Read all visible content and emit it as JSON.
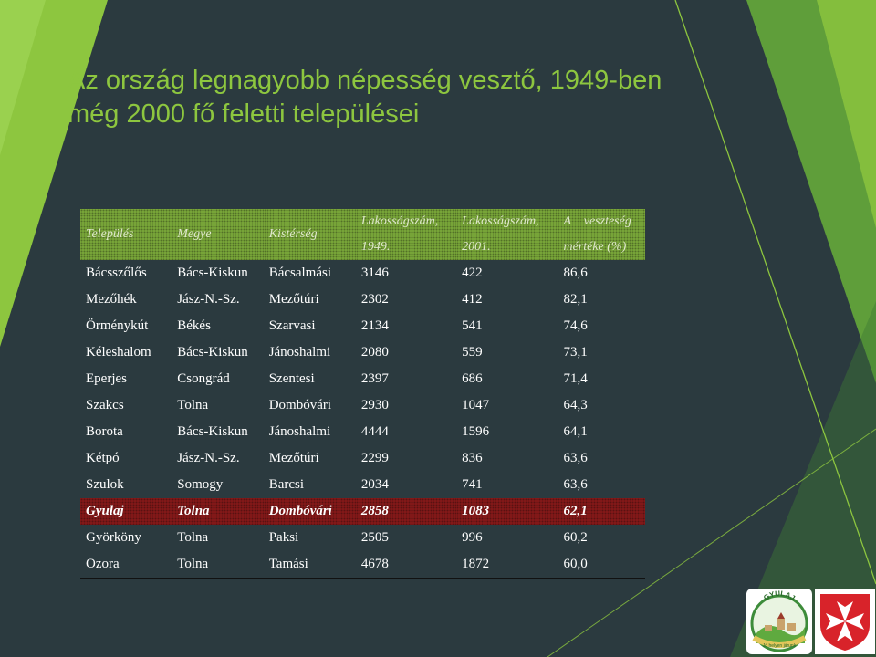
{
  "slide": {
    "title_line1": "Az ország legnagyobb népesség vesztő, 1949-ben",
    "title_line2": "még 2000 fő feletti települései"
  },
  "table": {
    "headers": [
      {
        "line1": "Település",
        "line2": ""
      },
      {
        "line1": "Megye",
        "line2": ""
      },
      {
        "line1": "Kistérség",
        "line2": ""
      },
      {
        "line1": "Lakosságszám,",
        "line2": "1949."
      },
      {
        "line1": "Lakosságszám,",
        "line2": "2001."
      },
      {
        "line1": "A    veszteség",
        "line2": "mértéke (%)"
      }
    ],
    "rows": [
      [
        "Bácsszőlős",
        "Bács-Kiskun",
        "Bácsalmási",
        "3146",
        "422",
        "86,6"
      ],
      [
        "Mezőhék",
        "Jász-N.-Sz.",
        "Mezőtúri",
        "2302",
        "412",
        "82,1"
      ],
      [
        "Örménykút",
        "Békés",
        "Szarvasi",
        "2134",
        "541",
        "74,6"
      ],
      [
        "Kéleshalom",
        "Bács-Kiskun",
        "Jánoshalmi",
        "2080",
        "559",
        "73,1"
      ],
      [
        "Eperjes",
        "Csongrád",
        "Szentesi",
        "2397",
        "686",
        "71,4"
      ],
      [
        "Szakcs",
        "Tolna",
        "Dombóvári",
        "2930",
        "1047",
        "64,3"
      ],
      [
        "Borota",
        "Bács-Kiskun",
        "Jánoshalmi",
        "4444",
        "1596",
        "64,1"
      ],
      [
        "Kétpó",
        "Jász-N.-Sz.",
        "Mezőtúri",
        "2299",
        "836",
        "63,6"
      ],
      [
        "Szulok",
        "Somogy",
        "Barcsi",
        "2034",
        "741",
        "63,6"
      ],
      [
        "Gyulaj",
        "Tolna",
        "Dombóvári",
        "2858",
        "1083",
        "62,1"
      ],
      [
        "Györköny",
        "Tolna",
        "Paksi",
        "2505",
        "996",
        "60,2"
      ],
      [
        "Ozora",
        "Tolna",
        "Tamási",
        "4678",
        "1872",
        "60,0"
      ]
    ],
    "highlight_row": 9
  },
  "logo": {
    "village_name": "GYULAJ",
    "motto": "Jó helyen járunk"
  },
  "colors": {
    "background": "#2b3a3f",
    "title": "#8dc63f",
    "header_fill": "#7fae3c",
    "highlight_fill": "#8b1a1a",
    "accent_green": "#8dc63f"
  }
}
